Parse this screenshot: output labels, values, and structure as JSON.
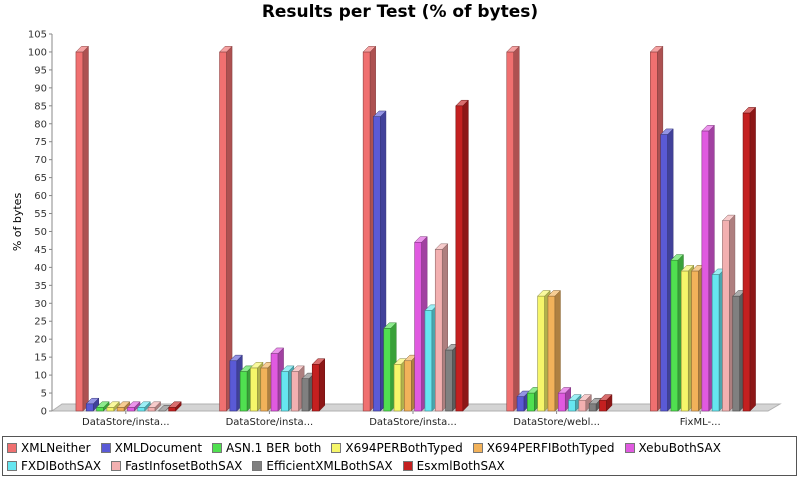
{
  "chart_data": {
    "type": "bar",
    "title": "Results per Test (% of bytes)",
    "xlabel": "",
    "ylabel": "% of bytes",
    "ylim": [
      0,
      105
    ],
    "ytick_step": 5,
    "grid": false,
    "legend_position": "bottom",
    "categories": [
      "DataStore/insta...",
      "DataStore/insta...",
      "DataStore/insta...",
      "DataStore/webl...",
      "FixML-..."
    ],
    "series": [
      {
        "name": "XMLNeither",
        "color": "#f07070",
        "values": [
          100,
          100,
          100,
          100,
          100
        ]
      },
      {
        "name": "XMLDocument",
        "color": "#5a5ad6",
        "values": [
          2,
          14,
          82,
          4,
          77
        ]
      },
      {
        "name": "ASN.1 BER both",
        "color": "#50e050",
        "values": [
          1,
          11,
          23,
          5,
          42
        ]
      },
      {
        "name": "X694PERBothTyped",
        "color": "#f6f66a",
        "values": [
          1,
          12,
          13,
          32,
          39
        ]
      },
      {
        "name": "X694PERFIBothTyped",
        "color": "#f2b25a",
        "values": [
          1,
          12,
          14,
          32,
          39
        ]
      },
      {
        "name": "XebuBothSAX",
        "color": "#e05ae0",
        "values": [
          1,
          16,
          47,
          5,
          78
        ]
      },
      {
        "name": "FXDIBothSAX",
        "color": "#66e6f0",
        "values": [
          1,
          11,
          28,
          3,
          38
        ]
      },
      {
        "name": "FastInfosetBothSAX",
        "color": "#f2b0b0",
        "values": [
          1,
          11,
          45,
          3,
          53
        ]
      },
      {
        "name": "EfficientXMLBothSAX",
        "color": "#808080",
        "values": [
          0,
          9,
          17,
          2,
          32
        ]
      },
      {
        "name": "EsxmlBothSAX",
        "color": "#c42020",
        "values": [
          1,
          13,
          85,
          3,
          83
        ]
      }
    ]
  }
}
